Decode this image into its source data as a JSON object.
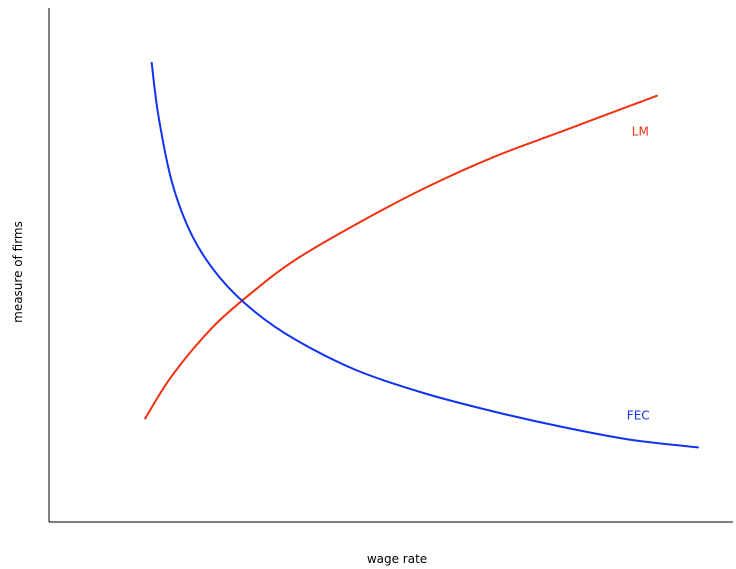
{
  "chart_data": {
    "type": "line",
    "title": "",
    "xlabel": "wage rate",
    "ylabel": "measure of firms",
    "xlim": [
      0,
      10
    ],
    "ylim": [
      0,
      10
    ],
    "grid": false,
    "legend": "none",
    "series": [
      {
        "name": "LM",
        "color": "#ee3311",
        "x": [
          1.4,
          1.8,
          2.4,
          3.0,
          3.6,
          4.5,
          5.5,
          6.5,
          7.5,
          8.4,
          8.9
        ],
        "y": [
          2.0,
          2.85,
          3.8,
          4.5,
          5.1,
          5.8,
          6.5,
          7.1,
          7.6,
          8.05,
          8.3
        ]
      },
      {
        "name": "FEC",
        "color": "#1133ee",
        "x": [
          1.5,
          1.6,
          1.8,
          2.1,
          2.5,
          3.0,
          3.6,
          4.5,
          5.5,
          6.5,
          7.5,
          8.5,
          9.5
        ],
        "y": [
          8.95,
          7.9,
          6.6,
          5.55,
          4.75,
          4.1,
          3.55,
          2.95,
          2.5,
          2.15,
          1.85,
          1.6,
          1.45
        ]
      }
    ]
  }
}
